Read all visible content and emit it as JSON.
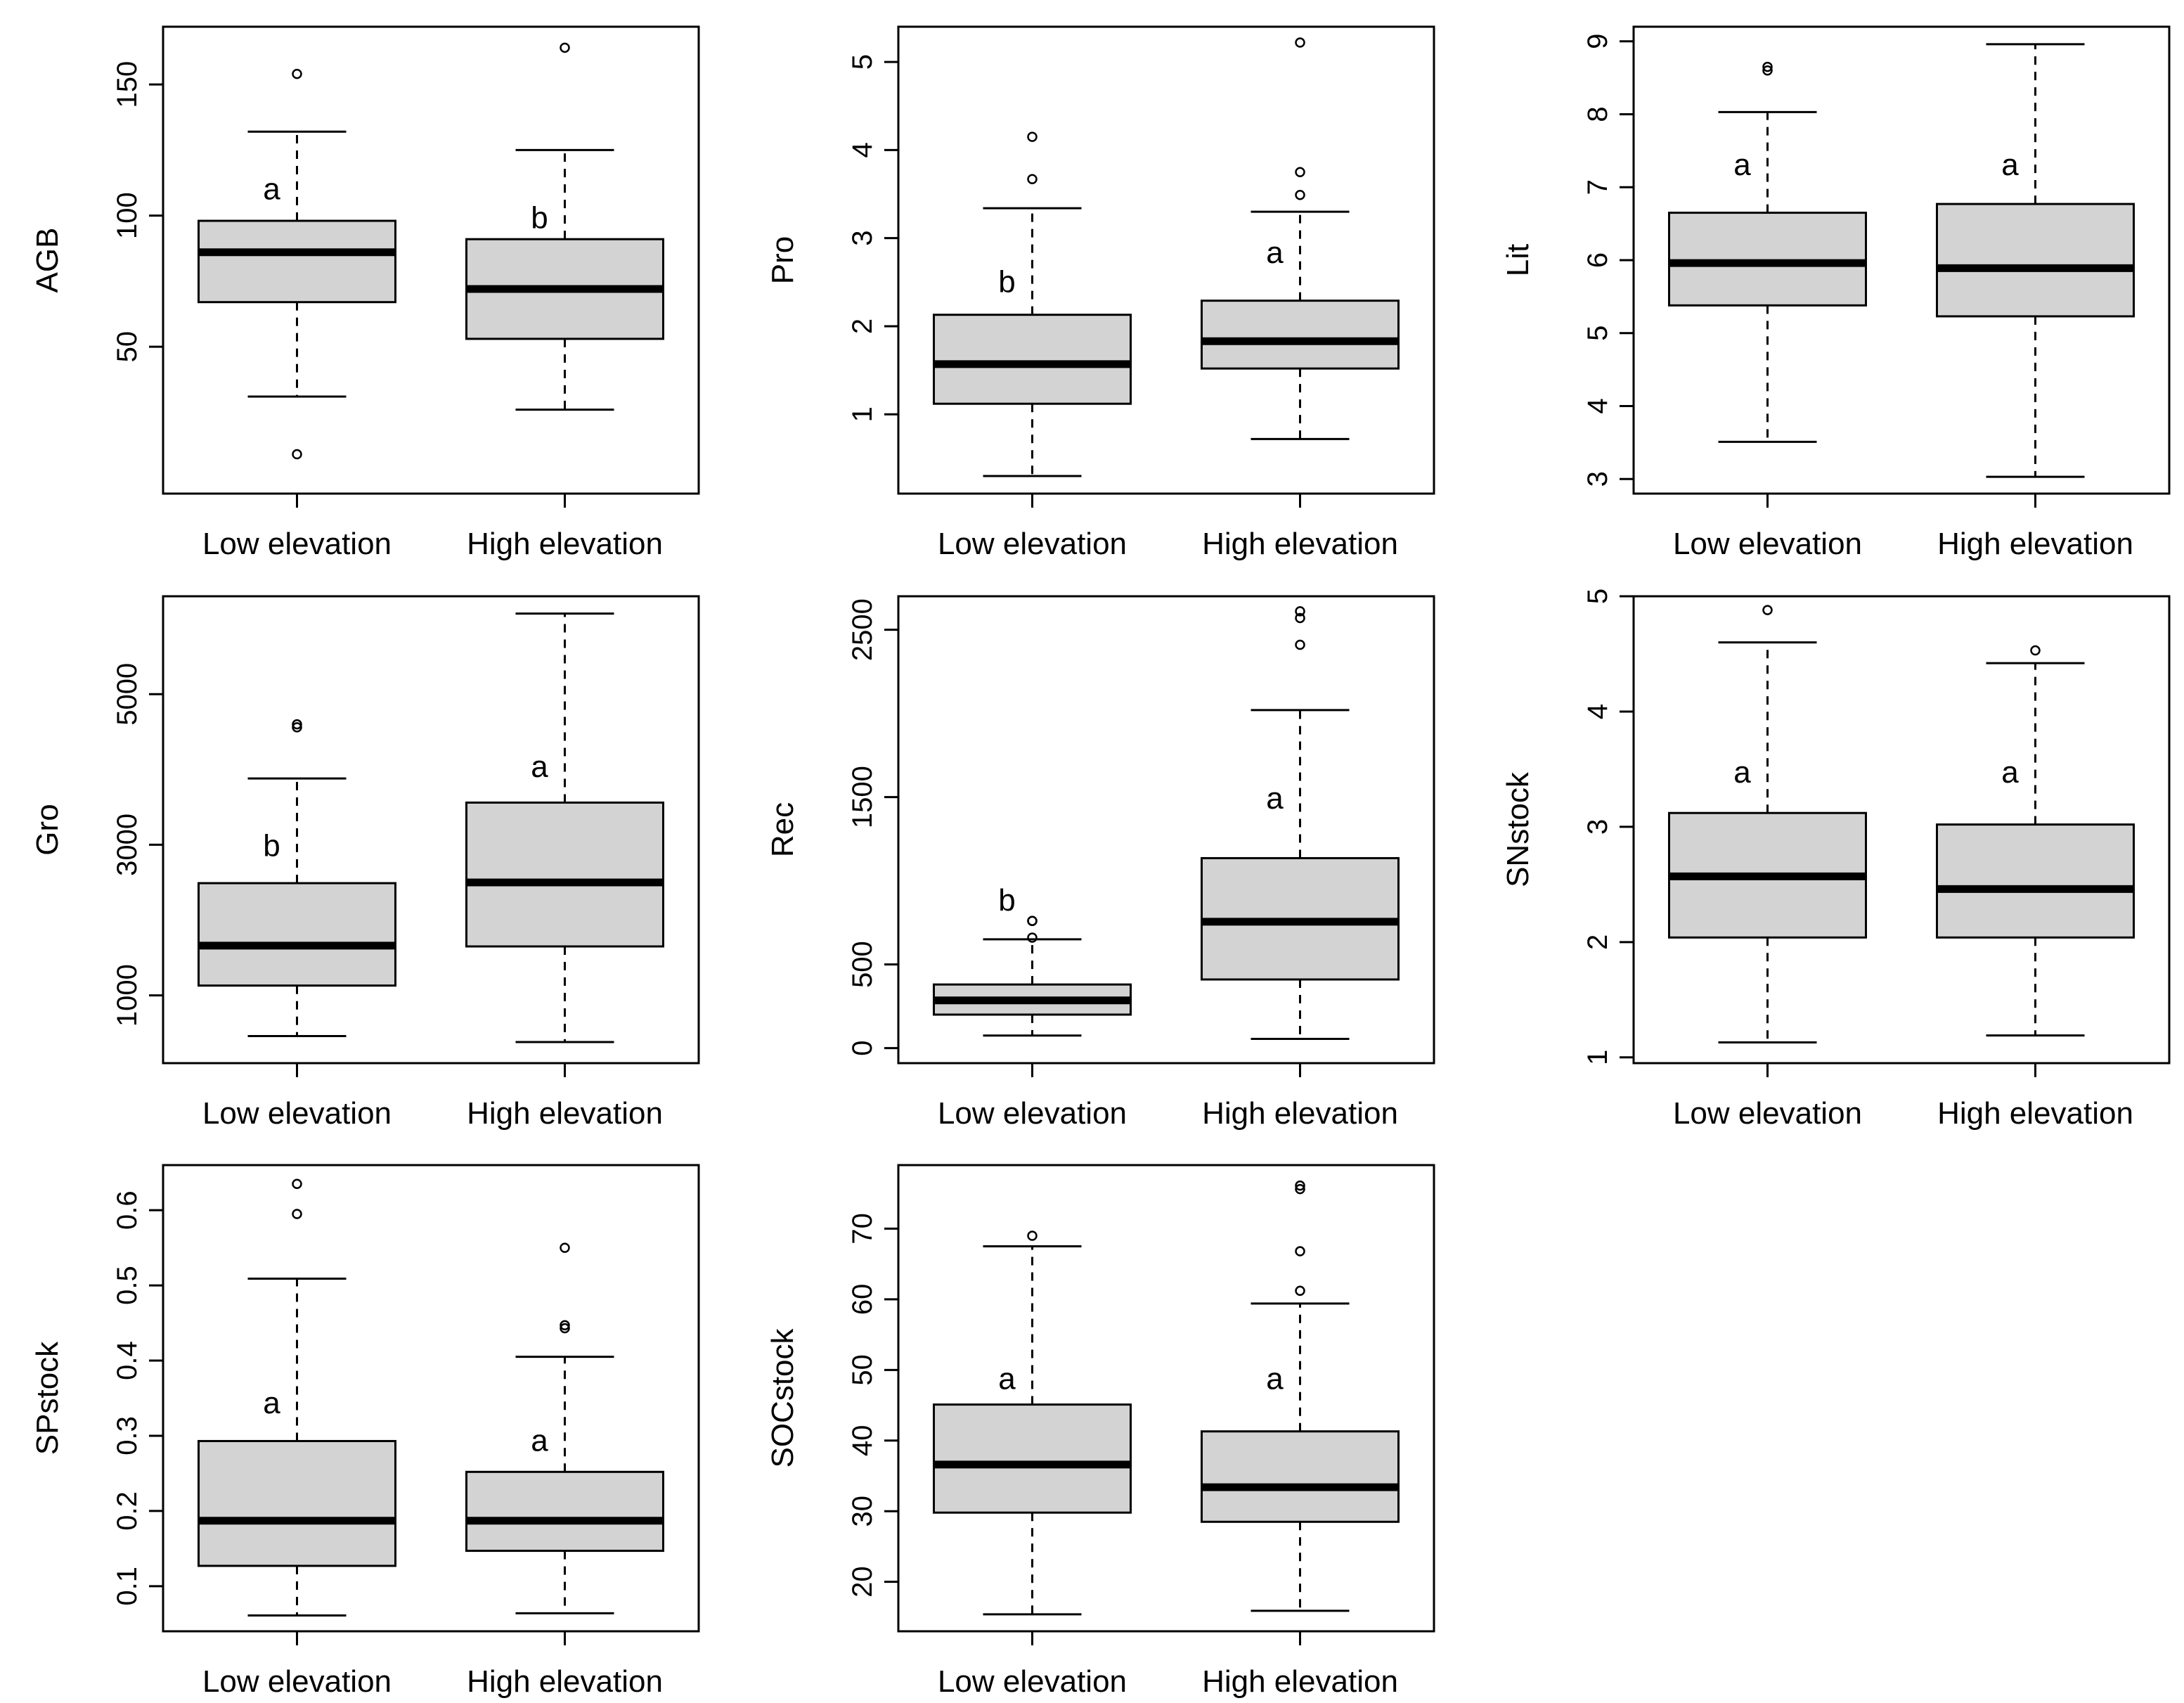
{
  "chart_data": [
    {
      "type": "boxplot",
      "ylabel": "AGB",
      "categories": [
        "Low elevation",
        "High elevation"
      ],
      "ylim": [
        -6,
        172
      ],
      "yticks": [
        50,
        100,
        150
      ],
      "boxes": [
        {
          "category": "Low elevation",
          "whisker_low": 31,
          "q1": 67,
          "median": 86,
          "q3": 98,
          "whisker_high": 132,
          "outliers": [
            154,
            9
          ],
          "letter": "a",
          "letter_y": 110
        },
        {
          "category": "High elevation",
          "whisker_low": 26,
          "q1": 53,
          "median": 72,
          "q3": 91,
          "whisker_high": 125,
          "outliers": [
            164
          ],
          "letter": "b",
          "letter_y": 99
        }
      ]
    },
    {
      "type": "boxplot",
      "ylabel": "Pro",
      "categories": [
        "Low elevation",
        "High elevation"
      ],
      "ylim": [
        0.1,
        5.4
      ],
      "yticks": [
        1,
        2,
        3,
        4,
        5
      ],
      "boxes": [
        {
          "category": "Low elevation",
          "whisker_low": 0.3,
          "q1": 1.12,
          "median": 1.57,
          "q3": 2.13,
          "whisker_high": 3.34,
          "outliers": [
            4.15,
            3.67
          ],
          "letter": "b",
          "letter_y": 2.5
        },
        {
          "category": "High elevation",
          "whisker_low": 0.72,
          "q1": 1.52,
          "median": 1.83,
          "q3": 2.29,
          "whisker_high": 3.3,
          "outliers": [
            5.22,
            3.75,
            3.49
          ],
          "letter": "a",
          "letter_y": 2.83
        }
      ]
    },
    {
      "type": "boxplot",
      "ylabel": "Lit",
      "categories": [
        "Low elevation",
        "High elevation"
      ],
      "ylim": [
        2.8,
        9.2
      ],
      "yticks": [
        3,
        4,
        5,
        6,
        7,
        8,
        9
      ],
      "boxes": [
        {
          "category": "Low elevation",
          "whisker_low": 3.51,
          "q1": 5.38,
          "median": 5.96,
          "q3": 6.65,
          "whisker_high": 8.03,
          "outliers": [
            8.6,
            8.65
          ],
          "letter": "a",
          "letter_y": 7.3
        },
        {
          "category": "High elevation",
          "whisker_low": 3.03,
          "q1": 5.23,
          "median": 5.89,
          "q3": 6.77,
          "whisker_high": 8.96,
          "outliers": [],
          "letter": "a",
          "letter_y": 7.3
        }
      ]
    },
    {
      "type": "boxplot",
      "ylabel": "Gro",
      "categories": [
        "Low elevation",
        "High elevation"
      ],
      "ylim": [
        100,
        6300
      ],
      "yticks": [
        1000,
        3000,
        5000
      ],
      "boxes": [
        {
          "category": "Low elevation",
          "whisker_low": 460,
          "q1": 1130,
          "median": 1660,
          "q3": 2490,
          "whisker_high": 3880,
          "outliers": [
            4560,
            4600
          ],
          "letter": "b",
          "letter_y": 2980
        },
        {
          "category": "High elevation",
          "whisker_low": 380,
          "q1": 1650,
          "median": 2500,
          "q3": 3560,
          "whisker_high": 6070,
          "outliers": [],
          "letter": "a",
          "letter_y": 4030
        }
      ]
    },
    {
      "type": "boxplot",
      "ylabel": "Rec",
      "categories": [
        "Low elevation",
        "High elevation"
      ],
      "ylim": [
        -90,
        2700
      ],
      "yticks": [
        0,
        500,
        1500,
        2500
      ],
      "boxes": [
        {
          "category": "Low elevation",
          "whisker_low": 75,
          "q1": 200,
          "median": 285,
          "q3": 380,
          "whisker_high": 650,
          "outliers": [
            660,
            760,
            760
          ],
          "letter": "b",
          "letter_y": 880
        },
        {
          "category": "High elevation",
          "whisker_low": 55,
          "q1": 410,
          "median": 755,
          "q3": 1135,
          "whisker_high": 2020,
          "outliers": [
            2410,
            2570,
            2610
          ],
          "letter": "a",
          "letter_y": 1490
        }
      ]
    },
    {
      "type": "boxplot",
      "ylabel": "SNstock",
      "categories": [
        "Low elevation",
        "High elevation"
      ],
      "ylim": [
        0.95,
        5.0
      ],
      "yticks": [
        1,
        2,
        3,
        4,
        5
      ],
      "boxes": [
        {
          "category": "Low elevation",
          "whisker_low": 1.13,
          "q1": 2.04,
          "median": 2.57,
          "q3": 3.12,
          "whisker_high": 4.6,
          "outliers": [
            4.88
          ],
          "letter": "a",
          "letter_y": 3.47
        },
        {
          "category": "High elevation",
          "whisker_low": 1.19,
          "q1": 2.04,
          "median": 2.46,
          "q3": 3.02,
          "whisker_high": 4.42,
          "outliers": [
            4.53
          ],
          "letter": "a",
          "letter_y": 3.47
        }
      ]
    },
    {
      "type": "boxplot",
      "ylabel": "SPstock",
      "categories": [
        "Low elevation",
        "High elevation"
      ],
      "ylim": [
        0.04,
        0.66
      ],
      "yticks": [
        0.1,
        0.2,
        0.3,
        0.4,
        0.5,
        0.6
      ],
      "boxes": [
        {
          "category": "Low elevation",
          "whisker_low": 0.061,
          "q1": 0.127,
          "median": 0.187,
          "q3": 0.293,
          "whisker_high": 0.509,
          "outliers": [
            0.635,
            0.595
          ],
          "letter": "a",
          "letter_y": 0.343
        },
        {
          "category": "High elevation",
          "whisker_low": 0.064,
          "q1": 0.147,
          "median": 0.187,
          "q3": 0.252,
          "whisker_high": 0.405,
          "outliers": [
            0.55,
            0.447,
            0.443
          ],
          "letter": "a",
          "letter_y": 0.293
        }
      ]
    },
    {
      "type": "boxplot",
      "ylabel": "SOCstock",
      "categories": [
        "Low elevation",
        "High elevation"
      ],
      "ylim": [
        13,
        79
      ],
      "yticks": [
        20,
        30,
        40,
        50,
        60,
        70
      ],
      "boxes": [
        {
          "category": "Low elevation",
          "whisker_low": 15.4,
          "q1": 29.8,
          "median": 36.6,
          "q3": 45.1,
          "whisker_high": 67.5,
          "outliers": [
            69.0
          ],
          "letter": "a",
          "letter_y": 48.7
        },
        {
          "category": "High elevation",
          "whisker_low": 15.9,
          "q1": 28.5,
          "median": 33.4,
          "q3": 41.3,
          "whisker_high": 59.4,
          "outliers": [
            76.1,
            75.6,
            66.8,
            61.2
          ],
          "letter": "a",
          "letter_y": 48.7
        }
      ]
    }
  ]
}
